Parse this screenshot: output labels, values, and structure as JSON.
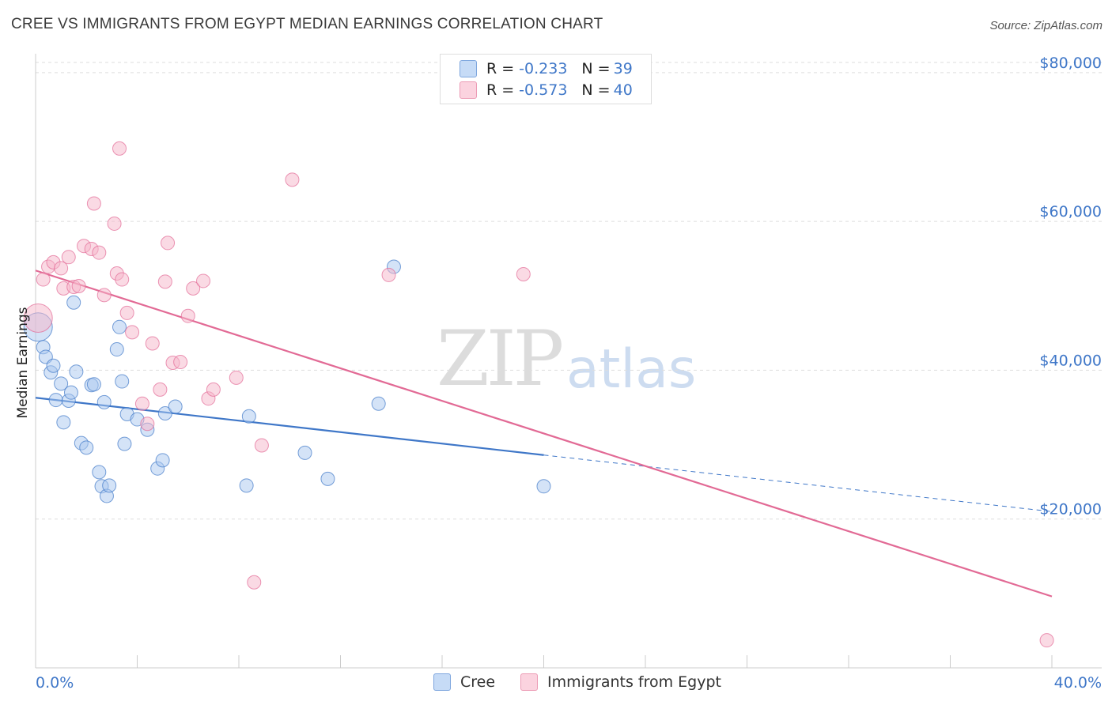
{
  "header": {
    "title": "CREE VS IMMIGRANTS FROM EGYPT MEDIAN EARNINGS CORRELATION CHART",
    "source": "Source: ZipAtlas.com"
  },
  "legend": {
    "rows": [
      {
        "r_label": "R = ",
        "r_value": "-0.233",
        "n_label": "N = ",
        "n_value": "39",
        "color": "#aac8ef"
      },
      {
        "r_label": "R = ",
        "r_value": "-0.573",
        "n_label": "N = ",
        "n_value": "40",
        "color": "#f6b6c9"
      }
    ]
  },
  "watermark": {
    "zip": "ZIP",
    "atlas": "atlas"
  },
  "chart_data": {
    "type": "scatter",
    "title": "CREE VS IMMIGRANTS FROM EGYPT MEDIAN EARNINGS CORRELATION CHART",
    "xlabel": "",
    "ylabel": "Median Earnings",
    "xlim": [
      0,
      40
    ],
    "ylim": [
      0,
      82000
    ],
    "x_ticks": [
      "0.0%",
      "40.0%"
    ],
    "y_ticks": [
      {
        "value": 20000,
        "label": "$20,000"
      },
      {
        "value": 40000,
        "label": "$40,000"
      },
      {
        "value": 60000,
        "label": "$60,000"
      },
      {
        "value": 80000,
        "label": "$80,000"
      }
    ],
    "grid": true,
    "legend_position": "top-center",
    "series": [
      {
        "name": "Cree",
        "color": "#3f77c8",
        "fill": "#aac8ef",
        "points": [
          [
            0.1,
            45800
          ],
          [
            0.3,
            43100
          ],
          [
            0.4,
            41800
          ],
          [
            0.6,
            39700
          ],
          [
            0.7,
            40600
          ],
          [
            0.8,
            36000
          ],
          [
            1.0,
            38200
          ],
          [
            1.1,
            33000
          ],
          [
            1.3,
            35900
          ],
          [
            1.4,
            37000
          ],
          [
            1.5,
            49100
          ],
          [
            1.6,
            39800
          ],
          [
            1.8,
            30200
          ],
          [
            2.0,
            29600
          ],
          [
            2.2,
            38000
          ],
          [
            2.3,
            38100
          ],
          [
            2.5,
            26300
          ],
          [
            2.6,
            24400
          ],
          [
            2.7,
            35700
          ],
          [
            2.8,
            23100
          ],
          [
            2.9,
            24500
          ],
          [
            3.2,
            42800
          ],
          [
            3.3,
            45800
          ],
          [
            3.4,
            38500
          ],
          [
            3.5,
            30100
          ],
          [
            3.6,
            34100
          ],
          [
            4.0,
            33400
          ],
          [
            4.4,
            32000
          ],
          [
            4.8,
            26800
          ],
          [
            5.0,
            27900
          ],
          [
            5.1,
            34200
          ],
          [
            5.5,
            35100
          ],
          [
            8.3,
            24500
          ],
          [
            8.4,
            33800
          ],
          [
            10.6,
            28900
          ],
          [
            11.5,
            25400
          ],
          [
            13.5,
            35500
          ],
          [
            14.1,
            53900
          ],
          [
            20.0,
            24400
          ]
        ],
        "trend": {
          "x": [
            0,
            20
          ],
          "y": [
            36300,
            28600
          ],
          "dashed_to": [
            40,
            21000
          ]
        }
      },
      {
        "name": "Immigrants from Egypt",
        "color": "#e26a95",
        "fill": "#f6b6c9",
        "points": [
          [
            0.1,
            47000
          ],
          [
            0.3,
            52200
          ],
          [
            0.5,
            53900
          ],
          [
            0.7,
            54500
          ],
          [
            1.0,
            53700
          ],
          [
            1.1,
            51000
          ],
          [
            1.3,
            55200
          ],
          [
            1.5,
            51200
          ],
          [
            1.7,
            51300
          ],
          [
            1.9,
            56700
          ],
          [
            2.2,
            56300
          ],
          [
            2.3,
            62400
          ],
          [
            2.5,
            55800
          ],
          [
            2.7,
            50100
          ],
          [
            3.1,
            59700
          ],
          [
            3.2,
            53000
          ],
          [
            3.3,
            69800
          ],
          [
            3.4,
            52200
          ],
          [
            3.6,
            47700
          ],
          [
            3.8,
            45100
          ],
          [
            4.2,
            35500
          ],
          [
            4.4,
            32800
          ],
          [
            4.6,
            43600
          ],
          [
            4.9,
            37400
          ],
          [
            5.1,
            51900
          ],
          [
            5.2,
            57100
          ],
          [
            5.4,
            41000
          ],
          [
            5.7,
            41100
          ],
          [
            6.0,
            47300
          ],
          [
            6.2,
            51000
          ],
          [
            6.6,
            52000
          ],
          [
            6.8,
            36200
          ],
          [
            7.0,
            37400
          ],
          [
            7.9,
            39000
          ],
          [
            8.6,
            11500
          ],
          [
            8.9,
            29900
          ],
          [
            10.1,
            65600
          ],
          [
            13.9,
            52800
          ],
          [
            19.2,
            52900
          ],
          [
            39.8,
            3700
          ]
        ],
        "trend": {
          "x": [
            0,
            40
          ],
          "y": [
            53400,
            9600
          ]
        }
      }
    ]
  }
}
